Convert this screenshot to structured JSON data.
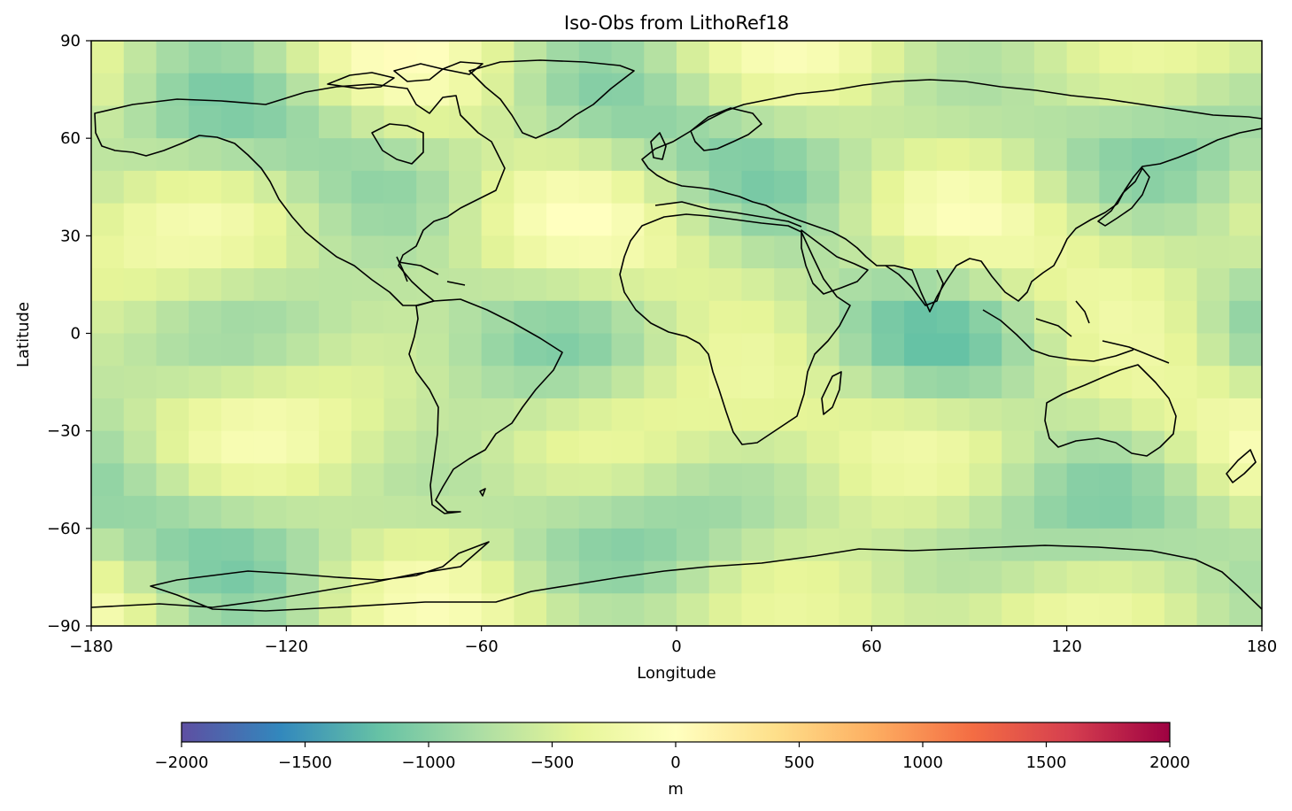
{
  "title": "Iso-Obs from LithoRef18",
  "map": {
    "xlabel": "Longitude",
    "ylabel": "Latitude",
    "xlim": [
      -180,
      180
    ],
    "ylim": [
      -90,
      90
    ],
    "xticks": [
      {
        "value": -180,
        "label": "−180"
      },
      {
        "value": -120,
        "label": "−120"
      },
      {
        "value": -60,
        "label": "−60"
      },
      {
        "value": 0,
        "label": "0"
      },
      {
        "value": 60,
        "label": "60"
      },
      {
        "value": 120,
        "label": "120"
      },
      {
        "value": 180,
        "label": "180"
      }
    ],
    "yticks": [
      {
        "value": 90,
        "label": "90"
      },
      {
        "value": 60,
        "label": "60"
      },
      {
        "value": 30,
        "label": "30"
      },
      {
        "value": 0,
        "label": "0"
      },
      {
        "value": -30,
        "label": "−30"
      },
      {
        "value": -60,
        "label": "−60"
      },
      {
        "value": -90,
        "label": "−90"
      }
    ],
    "projection": "PlateCarree",
    "coastlines": true,
    "field_description": "gridded isostatic residual / observed topography field"
  },
  "colorbar": {
    "label": "m",
    "colormap": "Spectral_r",
    "vmin": -2000,
    "vmax": 2000,
    "orientation": "horizontal",
    "ticks": [
      {
        "value": -2000,
        "label": "−2000"
      },
      {
        "value": -1500,
        "label": "−1500"
      },
      {
        "value": -1000,
        "label": "−1000"
      },
      {
        "value": -500,
        "label": "−500"
      },
      {
        "value": 0,
        "label": "0"
      },
      {
        "value": 500,
        "label": "500"
      },
      {
        "value": 1000,
        "label": "1000"
      },
      {
        "value": 1500,
        "label": "1500"
      },
      {
        "value": 2000,
        "label": "2000"
      }
    ],
    "colors": [
      "#5e4fa2",
      "#3288bd",
      "#66c2a5",
      "#abdda4",
      "#e6f598",
      "#ffffbf",
      "#fee08b",
      "#fdae61",
      "#f46d43",
      "#d53e4f",
      "#9e0142"
    ]
  }
}
